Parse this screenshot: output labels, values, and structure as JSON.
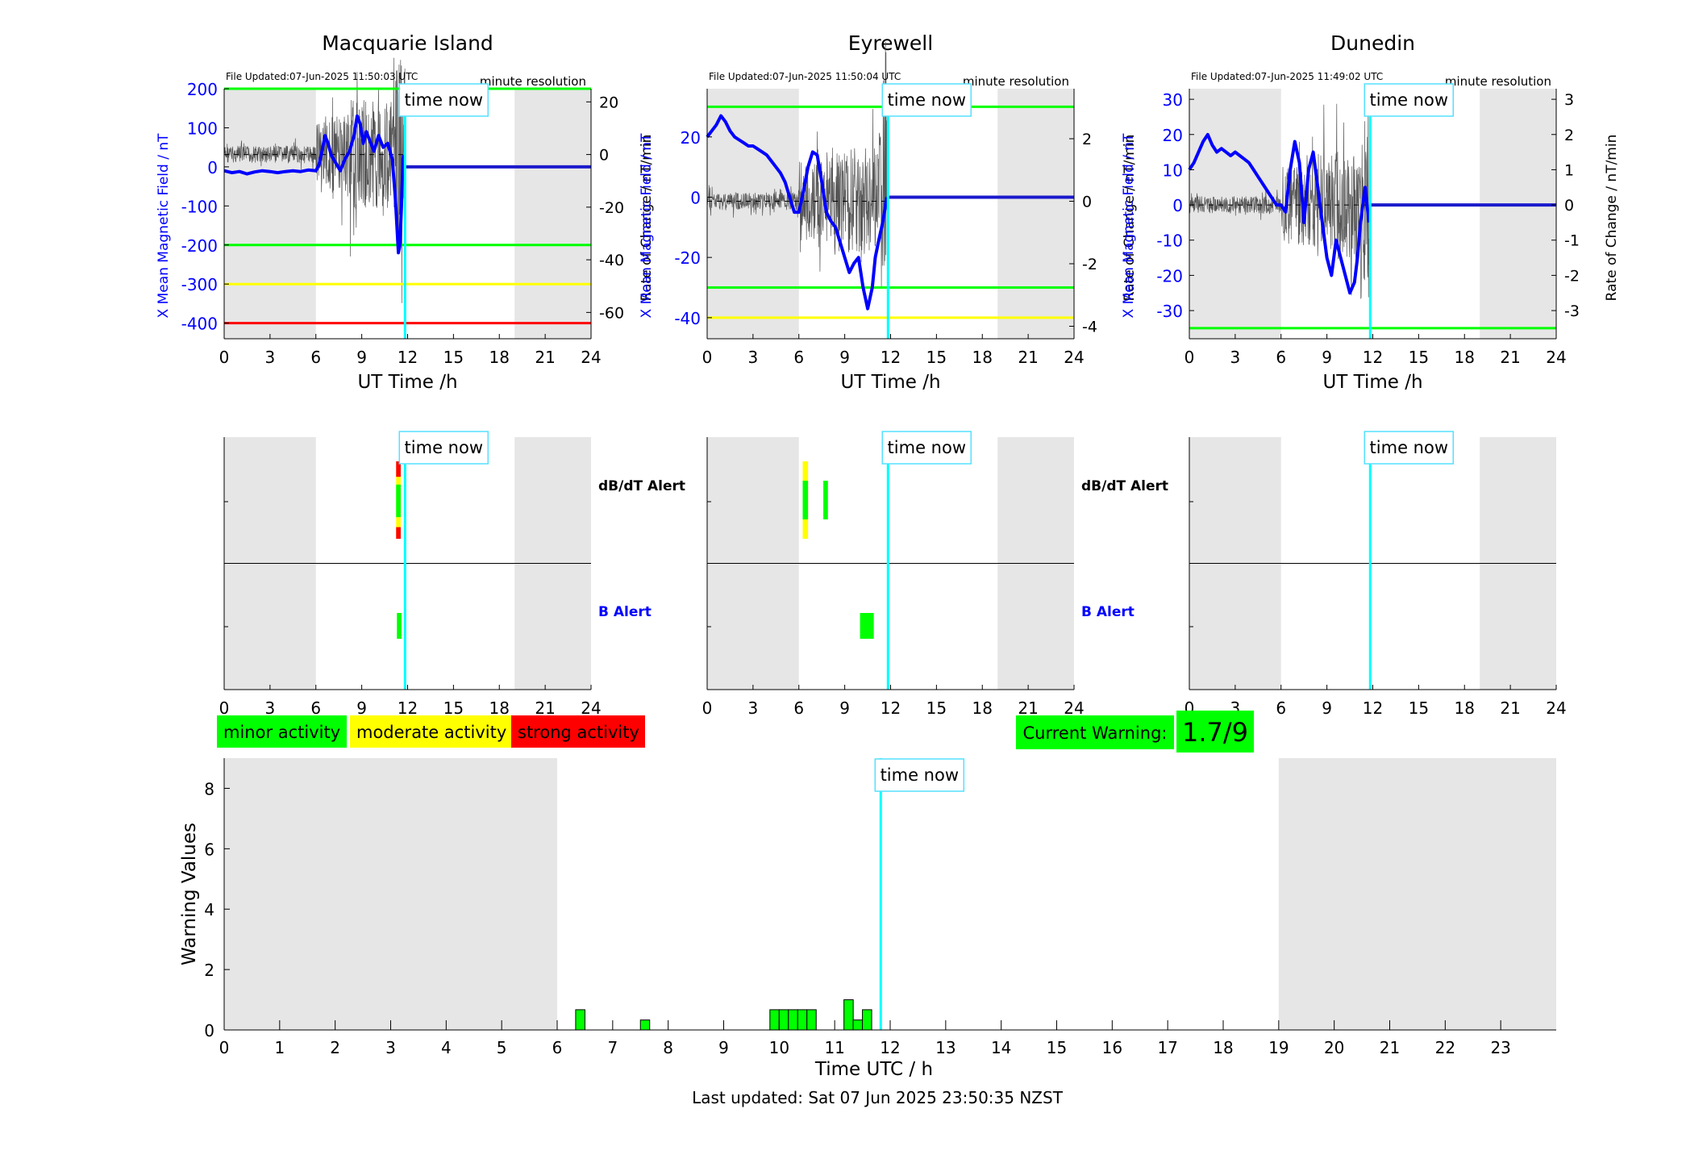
{
  "colors": {
    "field_blue": "#0000ff",
    "field_line": "#1a1acc",
    "rate_trace": "#555555",
    "night_shade": "#e6e6e6",
    "minor": "#00ff00",
    "moderate": "#ffff00",
    "strong": "#ff0000",
    "time_now": "#00ffff",
    "box_border": "#55e0ff"
  },
  "time_now_label": "time now",
  "dbdt_label": "dB/dT Alert",
  "b_label": "B Alert",
  "hour_ticks_3h": [
    "0",
    "3",
    "6",
    "9",
    "12",
    "15",
    "18",
    "21",
    "24"
  ],
  "stations": [
    {
      "name": "Macquarie Island",
      "file_updated": "File Updated:07-Jun-2025 11:50:03 UTC",
      "resolution": "minute resolution",
      "ylabel_left": "X Mean Magnetic Field / nT",
      "ylabel_right": "Rate of Change / nT/min",
      "xlabel": "UT Time /h",
      "now_hour": 11.83,
      "night_start": 6,
      "night_end": 19,
      "y_left_range": [
        -440,
        200
      ],
      "y_left_ticks": [
        "200",
        "100",
        "0",
        "-100",
        "-200",
        "-300",
        "-400"
      ],
      "y_right_range": [
        -70,
        25
      ],
      "y_right_ticks": [
        "20",
        "0",
        "-20",
        "-40",
        "-60"
      ],
      "thresholds": [
        {
          "value": 200,
          "level": "minor"
        },
        {
          "value": -200,
          "level": "minor"
        },
        {
          "value": -300,
          "level": "moderate"
        },
        {
          "value": -400,
          "level": "strong"
        }
      ],
      "series_x": {
        "hours": [
          0,
          0.5,
          1,
          1.5,
          2,
          2.5,
          3,
          3.5,
          4,
          4.5,
          5,
          5.5,
          6,
          6.2,
          6.4,
          6.6,
          6.8,
          7,
          7.3,
          7.6,
          7.9,
          8.2,
          8.5,
          8.7,
          8.9,
          9.1,
          9.3,
          9.5,
          9.8,
          10.1,
          10.4,
          10.7,
          11,
          11.2,
          11.4,
          11.5,
          11.6,
          11.7,
          11.75
        ],
        "values": [
          -10,
          -15,
          -12,
          -18,
          -13,
          -10,
          -12,
          -15,
          -12,
          -10,
          -12,
          -8,
          -10,
          5,
          40,
          80,
          60,
          30,
          10,
          -10,
          20,
          40,
          80,
          130,
          110,
          60,
          90,
          70,
          40,
          80,
          50,
          60,
          20,
          -80,
          -220,
          -200,
          -100,
          20,
          30
        ]
      },
      "dbdt_alerts": [
        {
          "start": 11.25,
          "end": 11.55,
          "level": "moderate",
          "row_from": 0.0,
          "row_to": 1.0
        },
        {
          "start": 11.25,
          "end": 11.55,
          "level": "strong",
          "row_from": 0.0,
          "row_to": 0.2
        },
        {
          "start": 11.25,
          "end": 11.55,
          "level": "strong",
          "row_from": 0.85,
          "row_to": 1.0
        },
        {
          "start": 11.25,
          "end": 11.55,
          "level": "minor",
          "row_from": 0.3,
          "row_to": 0.72
        }
      ],
      "b_alerts": [
        {
          "start": 11.3,
          "end": 11.6,
          "level": "minor"
        }
      ]
    },
    {
      "name": "Eyrewell",
      "file_updated": "File Updated:07-Jun-2025 11:50:04 UTC",
      "resolution": "minute resolution",
      "ylabel_left": "X Mean Magnetic Field / nT",
      "ylabel_right": "Rate of Change / nT/min",
      "xlabel": "UT Time /h",
      "now_hour": 11.83,
      "night_start": 6,
      "night_end": 19,
      "y_left_range": [
        -47,
        36
      ],
      "y_left_ticks": [
        "20",
        "0",
        "-20",
        "-40"
      ],
      "y_right_range": [
        -4.4,
        3.6
      ],
      "y_right_ticks": [
        "2",
        "0",
        "-2",
        "-4"
      ],
      "thresholds": [
        {
          "value": 30,
          "level": "minor"
        },
        {
          "value": -30,
          "level": "minor"
        },
        {
          "value": -40,
          "level": "moderate"
        }
      ],
      "series_x": {
        "hours": [
          0,
          0.3,
          0.6,
          0.9,
          1.2,
          1.5,
          1.8,
          2.1,
          2.4,
          2.7,
          3,
          3.3,
          3.6,
          3.9,
          4.2,
          4.5,
          4.8,
          5.1,
          5.4,
          5.7,
          6,
          6.3,
          6.6,
          6.9,
          7.2,
          7.5,
          7.8,
          8.1,
          8.4,
          8.7,
          9,
          9.3,
          9.6,
          9.9,
          10.2,
          10.5,
          10.8,
          11,
          11.2,
          11.5,
          11.75
        ],
        "values": [
          20,
          22,
          24,
          27,
          25,
          22,
          20,
          19,
          18,
          17,
          17,
          16,
          15,
          14,
          12,
          10,
          8,
          5,
          0,
          -5,
          -5,
          2,
          10,
          15,
          14,
          5,
          -5,
          -8,
          -10,
          -15,
          -20,
          -25,
          -22,
          -20,
          -30,
          -37,
          -30,
          -20,
          -15,
          -8,
          0
        ]
      },
      "dbdt_alerts": [
        {
          "start": 6.25,
          "end": 6.6,
          "level": "moderate",
          "row_from": 0.0,
          "row_to": 1.0
        },
        {
          "start": 6.25,
          "end": 6.6,
          "level": "minor",
          "row_from": 0.25,
          "row_to": 0.75
        },
        {
          "start": 7.6,
          "end": 7.9,
          "level": "minor",
          "row_from": 0.25,
          "row_to": 0.75
        }
      ],
      "b_alerts": [
        {
          "start": 10.0,
          "end": 10.9,
          "level": "minor"
        }
      ]
    },
    {
      "name": "Dunedin",
      "file_updated": "File Updated:07-Jun-2025 11:49:02 UTC",
      "resolution": "minute resolution",
      "ylabel_left": "X Mean Magnetic Field / nT",
      "ylabel_right": "Rate of Change / nT/min",
      "xlabel": "UT Time /h",
      "now_hour": 11.83,
      "night_start": 6,
      "night_end": 19,
      "y_left_range": [
        -38,
        33
      ],
      "y_left_ticks": [
        "30",
        "20",
        "10",
        "0",
        "-10",
        "-20",
        "-30"
      ],
      "y_right_range": [
        -3.8,
        3.3
      ],
      "y_right_ticks": [
        "3",
        "2",
        "1",
        "0",
        "-1",
        "-2",
        "-3"
      ],
      "thresholds": [
        {
          "value": -35,
          "level": "minor"
        }
      ],
      "series_x": {
        "hours": [
          0,
          0.3,
          0.6,
          0.9,
          1.2,
          1.5,
          1.8,
          2.1,
          2.4,
          2.7,
          3,
          3.3,
          3.6,
          3.9,
          4.2,
          4.5,
          4.8,
          5.1,
          5.4,
          5.7,
          6,
          6.3,
          6.6,
          6.9,
          7.2,
          7.5,
          7.8,
          8.1,
          8.4,
          8.7,
          9,
          9.3,
          9.6,
          9.9,
          10.2,
          10.5,
          10.8,
          11,
          11.2,
          11.5,
          11.75
        ],
        "values": [
          10,
          12,
          15,
          18,
          20,
          17,
          15,
          16,
          15,
          14,
          15,
          14,
          13,
          12,
          10,
          8,
          6,
          4,
          2,
          0,
          0,
          -2,
          10,
          18,
          12,
          -5,
          10,
          15,
          5,
          -5,
          -15,
          -20,
          -10,
          -15,
          -20,
          -25,
          -22,
          -15,
          -5,
          5,
          -5
        ]
      },
      "dbdt_alerts": [],
      "b_alerts": []
    }
  ],
  "legend": [
    {
      "label": "minor activity",
      "level": "minor"
    },
    {
      "label": "moderate activity",
      "level": "moderate"
    },
    {
      "label": "strong activity",
      "level": "strong"
    }
  ],
  "current_warning": {
    "label": "Current Warning:",
    "value": "1.7/9"
  },
  "footer": "Last updated: Sat 07 Jun 2025 23:50:35 NZST",
  "chart_data": {
    "type": "bar",
    "title": "",
    "xlabel": "Time UTC / h",
    "ylabel": "Warning Values",
    "xlim": [
      0,
      24
    ],
    "ylim": [
      0,
      9
    ],
    "x_ticks": [
      "0",
      "1",
      "2",
      "3",
      "4",
      "5",
      "6",
      "7",
      "8",
      "9",
      "10",
      "11",
      "12",
      "13",
      "14",
      "15",
      "16",
      "17",
      "18",
      "19",
      "20",
      "21",
      "22",
      "23"
    ],
    "y_ticks": [
      "0",
      "2",
      "4",
      "6",
      "8"
    ],
    "night_start": 6,
    "night_end": 19,
    "now_hour": 11.83,
    "bar_width_h": 0.1667,
    "bars": [
      {
        "x": 6.333,
        "value": 0.67
      },
      {
        "x": 7.5,
        "value": 0.33
      },
      {
        "x": 9.833,
        "value": 0.67
      },
      {
        "x": 10.0,
        "value": 0.67
      },
      {
        "x": 10.167,
        "value": 0.67
      },
      {
        "x": 10.333,
        "value": 0.67
      },
      {
        "x": 10.5,
        "value": 0.67
      },
      {
        "x": 11.167,
        "value": 1.0
      },
      {
        "x": 11.333,
        "value": 0.33
      },
      {
        "x": 11.5,
        "value": 0.67
      }
    ]
  }
}
